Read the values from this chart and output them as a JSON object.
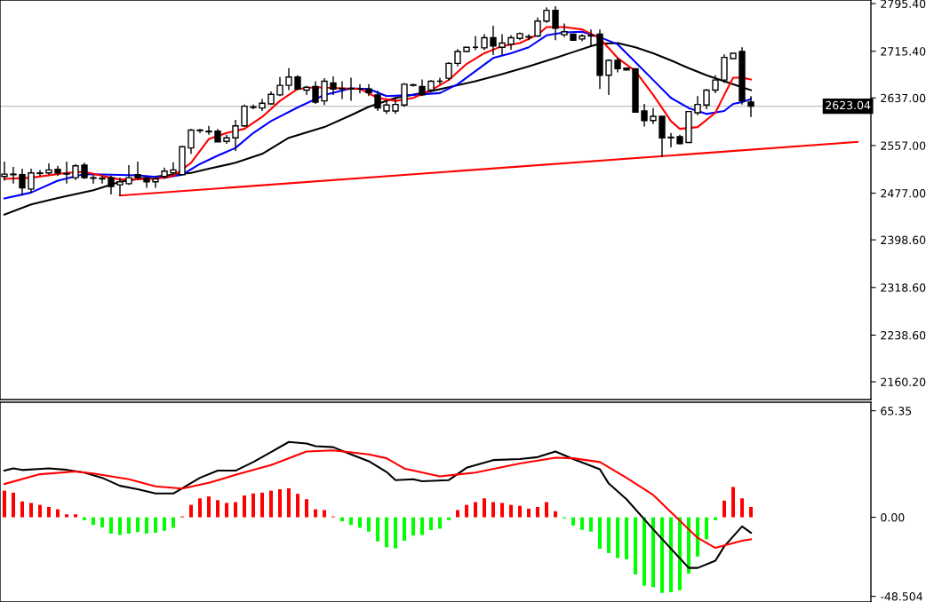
{
  "chart_data": [
    {
      "type": "candlestick",
      "categories": [
        null,
        null,
        null,
        null,
        null,
        null,
        null,
        null,
        null,
        null,
        null,
        null,
        null,
        null,
        null,
        null,
        null,
        null,
        null,
        null,
        null,
        null,
        null,
        null,
        null,
        null,
        null,
        null,
        null,
        null,
        null,
        null,
        null,
        null,
        null,
        null,
        null,
        null,
        null,
        null,
        null,
        null,
        null,
        null,
        null,
        null,
        null,
        null,
        null,
        null,
        null,
        null,
        null,
        null,
        null,
        null,
        null,
        null,
        null,
        null,
        null,
        null,
        null,
        null,
        null,
        null,
        null,
        null,
        null,
        null,
        null,
        null,
        null,
        null,
        null,
        null,
        null,
        null,
        null,
        null,
        null,
        null,
        null,
        null,
        null,
        null,
        null,
        null,
        null,
        null,
        null,
        null,
        null,
        null,
        null,
        null,
        null,
        null
      ],
      "ohlc": [
        [
          2505,
          2530,
          2498,
          2509
        ],
        [
          2508,
          2521,
          2493,
          2509
        ],
        [
          2508,
          2518,
          2473,
          2486
        ],
        [
          2484,
          2518,
          2478,
          2511
        ],
        [
          2511,
          2516,
          2506,
          2510
        ],
        [
          2511,
          2527,
          2508,
          2516
        ],
        [
          2517,
          2523,
          2506,
          2511
        ],
        [
          2509,
          2530,
          2493,
          2510
        ],
        [
          2503,
          2526,
          2499,
          2523
        ],
        [
          2524,
          2528,
          2501,
          2503
        ],
        [
          2503,
          2508,
          2493,
          2502
        ],
        [
          2502,
          2506,
          2493,
          2501
        ],
        [
          2503,
          2506,
          2475,
          2488
        ],
        [
          2491,
          2503,
          2473,
          2496
        ],
        [
          2493,
          2524,
          2491,
          2503
        ],
        [
          2508,
          2530,
          2500,
          2503
        ],
        [
          2501,
          2503,
          2486,
          2496
        ],
        [
          2496,
          2503,
          2486,
          2501
        ],
        [
          2505,
          2520,
          2501,
          2514
        ],
        [
          2511,
          2529,
          2508,
          2516
        ],
        [
          2508,
          2556,
          2508,
          2555
        ],
        [
          2553,
          2585,
          2543,
          2583
        ],
        [
          2582,
          2585,
          2578,
          2583
        ],
        [
          2581,
          2590,
          2575,
          2580
        ],
        [
          2581,
          2585,
          2563,
          2563
        ],
        [
          2564,
          2575,
          2560,
          2570
        ],
        [
          2570,
          2600,
          2548,
          2590
        ],
        [
          2590,
          2626,
          2588,
          2623
        ],
        [
          2621,
          2626,
          2618,
          2622
        ],
        [
          2620,
          2635,
          2615,
          2628
        ],
        [
          2627,
          2648,
          2626,
          2643
        ],
        [
          2642,
          2672,
          2640,
          2658
        ],
        [
          2658,
          2687,
          2650,
          2672
        ],
        [
          2672,
          2675,
          2650,
          2652
        ],
        [
          2650,
          2657,
          2642,
          2655
        ],
        [
          2656,
          2665,
          2627,
          2630
        ],
        [
          2632,
          2670,
          2625,
          2665
        ],
        [
          2662,
          2673,
          2642,
          2652
        ],
        [
          2652,
          2665,
          2635,
          2653
        ],
        [
          2653,
          2671,
          2632,
          2652
        ],
        [
          2652,
          2660,
          2645,
          2652
        ],
        [
          2652,
          2660,
          2640,
          2646
        ],
        [
          2642,
          2649,
          2615,
          2620
        ],
        [
          2615,
          2632,
          2610,
          2625
        ],
        [
          2615,
          2637,
          2610,
          2626
        ],
        [
          2625,
          2662,
          2622,
          2660
        ],
        [
          2658,
          2661,
          2656,
          2659
        ],
        [
          2656,
          2668,
          2640,
          2642
        ],
        [
          2650,
          2667,
          2647,
          2665
        ],
        [
          2665,
          2671,
          2660,
          2665
        ],
        [
          2670,
          2697,
          2667,
          2695
        ],
        [
          2695,
          2719,
          2690,
          2715
        ],
        [
          2715,
          2722,
          2714,
          2722
        ],
        [
          2722,
          2741,
          2717,
          2722
        ],
        [
          2721,
          2744,
          2717,
          2738
        ],
        [
          2738,
          2758,
          2709,
          2724
        ],
        [
          2722,
          2744,
          2709,
          2729
        ],
        [
          2727,
          2742,
          2718,
          2738
        ],
        [
          2737,
          2747,
          2734,
          2745
        ],
        [
          2739,
          2744,
          2734,
          2740
        ],
        [
          2741,
          2772,
          2739,
          2766
        ],
        [
          2766,
          2789,
          2763,
          2784
        ],
        [
          2784,
          2791,
          2734,
          2754
        ],
        [
          2743,
          2762,
          2739,
          2748
        ],
        [
          2744,
          2745,
          2734,
          2734
        ],
        [
          2736,
          2744,
          2732,
          2741
        ],
        [
          2742,
          2752,
          2724,
          2741
        ],
        [
          2744,
          2752,
          2652,
          2675
        ],
        [
          2675,
          2702,
          2642,
          2700
        ],
        [
          2700,
          2705,
          2680,
          2686
        ],
        [
          2687,
          2687,
          2684,
          2684
        ],
        [
          2686,
          2686,
          2613,
          2613
        ],
        [
          2615,
          2627,
          2589,
          2599
        ],
        [
          2599,
          2620,
          2593,
          2606
        ],
        [
          2606,
          2606,
          2538,
          2570
        ],
        [
          2570,
          2578,
          2554,
          2571
        ],
        [
          2572,
          2575,
          2559,
          2560
        ],
        [
          2562,
          2614,
          2562,
          2614
        ],
        [
          2612,
          2640,
          2608,
          2626
        ],
        [
          2625,
          2652,
          2618,
          2650
        ],
        [
          2650,
          2675,
          2645,
          2667
        ],
        [
          2667,
          2710,
          2662,
          2705
        ],
        [
          2703,
          2712,
          2703,
          2712
        ],
        [
          2715,
          2722,
          2626,
          2632
        ],
        [
          2630,
          2640,
          2605,
          2623
        ],
        null,
        null,
        null,
        null,
        null,
        null,
        null,
        null,
        null,
        null,
        null,
        null,
        null
      ],
      "series": [
        {
          "type": "line",
          "color": "#000000",
          "values": [
            2441,
            null,
            null,
            2458,
            null,
            null,
            2469,
            null,
            null,
            null,
            2482,
            null,
            null,
            2496,
            null,
            null,
            2503,
            null,
            null,
            2508,
            null,
            2511,
            null,
            2518,
            null,
            null,
            2528,
            null,
            null,
            2543,
            null,
            null,
            2570,
            null,
            null,
            null,
            2588,
            null,
            null,
            2608,
            null,
            2622,
            null,
            null,
            2637,
            null,
            null,
            2645,
            null,
            null,
            2655,
            null,
            null,
            2665,
            null,
            null,
            2677,
            null,
            null,
            2690,
            null,
            null,
            2704,
            null,
            2714,
            null,
            2724,
            2728,
            null,
            2729,
            null,
            2722,
            null,
            2712,
            null,
            2700,
            null,
            2687,
            null,
            2675,
            null,
            2665,
            null,
            2655,
            2650,
            null,
            null,
            null,
            null,
            null,
            null,
            null,
            null,
            null,
            null,
            null,
            null,
            null
          ]
        },
        {
          "type": "line",
          "color": "#0000ff",
          "values": [
            2468,
            null,
            null,
            2478,
            null,
            null,
            2498,
            null,
            null,
            2509,
            null,
            null,
            2508,
            null,
            null,
            2507,
            null,
            null,
            2503,
            null,
            2508,
            null,
            2526,
            null,
            2540,
            null,
            2553,
            null,
            2578,
            null,
            2598,
            null,
            null,
            2621,
            null,
            null,
            2642,
            null,
            null,
            2653,
            null,
            2652,
            null,
            2640,
            null,
            null,
            2642,
            null,
            null,
            2645,
            null,
            2660,
            null,
            2682,
            null,
            2704,
            null,
            2712,
            null,
            2722,
            null,
            2742,
            null,
            2747,
            null,
            2748,
            null,
            2739,
            null,
            2727,
            null,
            2697,
            null,
            2667,
            null,
            2637,
            null,
            2620,
            null,
            2610,
            null,
            2615,
            2627,
            2630,
            2635,
            null,
            null,
            null,
            null,
            null,
            null,
            null,
            null,
            null,
            null,
            null,
            null,
            null
          ]
        },
        {
          "type": "line",
          "color": "#ff0000",
          "values": [
            2501,
            null,
            null,
            2503,
            null,
            null,
            null,
            2511,
            null,
            2513,
            null,
            2506,
            null,
            2500,
            null,
            null,
            null,
            2501,
            null,
            2506,
            null,
            2528,
            null,
            2568,
            null,
            2578,
            null,
            2585,
            null,
            2605,
            null,
            2632,
            null,
            2652,
            null,
            2655,
            null,
            null,
            2653,
            null,
            2652,
            null,
            2637,
            null,
            2632,
            null,
            2637,
            null,
            2650,
            null,
            2667,
            null,
            2694,
            null,
            2712,
            null,
            2724,
            null,
            2729,
            null,
            2743,
            2756,
            null,
            2756,
            null,
            2752,
            null,
            2737,
            null,
            2704,
            null,
            2682,
            null,
            2642,
            null,
            2598,
            2585,
            null,
            2588,
            null,
            2612,
            2642,
            2671,
            2671,
            2668,
            null,
            null,
            null,
            null,
            null,
            null,
            null,
            null,
            null,
            null,
            null,
            null,
            null
          ]
        },
        {
          "type": "line",
          "color": "#ff0000",
          "values": [
            null,
            null,
            null,
            null,
            null,
            null,
            null,
            null,
            null,
            null,
            null,
            null,
            null,
            2473,
            null,
            null,
            null,
            null,
            null,
            null,
            null,
            null,
            null,
            null,
            null,
            null,
            null,
            null,
            null,
            null,
            null,
            null,
            null,
            null,
            null,
            null,
            null,
            null,
            null,
            null,
            null,
            null,
            null,
            null,
            null,
            null,
            null,
            null,
            null,
            null,
            null,
            null,
            null,
            null,
            null,
            null,
            null,
            null,
            null,
            null,
            null,
            null,
            null,
            null,
            null,
            null,
            null,
            null,
            null,
            null,
            null,
            null,
            null,
            null,
            null,
            null,
            null,
            null,
            null,
            null,
            null,
            null,
            null,
            null,
            null,
            null,
            null,
            null,
            null,
            null,
            null,
            null,
            null,
            null,
            null,
            null,
            2563,
            null
          ]
        }
      ],
      "ref_lines": [
        {
          "axis": "y",
          "value": 2623.04,
          "label": "2623.04",
          "color": "#c0c0c0"
        }
      ],
      "ylim": [
        2130.4,
        2801.4
      ],
      "yticks": [
        {
          "value": 2795.4,
          "label": "2795.40"
        },
        {
          "value": 2715.4,
          "label": "2715.40"
        },
        {
          "value": 2637,
          "label": "2637.00"
        },
        {
          "value": 2557,
          "label": "2557.00"
        },
        {
          "value": 2477,
          "label": "2477.00"
        },
        {
          "value": 2398.6,
          "label": "2398.60"
        },
        {
          "value": 2318.6,
          "label": "2318.60"
        },
        {
          "value": 2238.6,
          "label": "2238.60"
        },
        {
          "value": 2160.2,
          "label": "2160.20"
        }
      ],
      "tick_labels": "y",
      "grid": false
    },
    {
      "type": "bar",
      "categories": [
        null,
        null,
        null,
        null,
        null,
        null,
        null,
        null,
        null,
        null,
        null,
        null,
        null,
        null,
        null,
        null,
        null,
        null,
        null,
        null,
        null,
        null,
        null,
        null,
        null,
        null,
        null,
        null,
        null,
        null,
        null,
        null,
        null,
        null,
        null,
        null,
        null,
        null,
        null,
        null,
        null,
        null,
        null,
        null,
        null,
        null,
        null,
        null,
        null,
        null,
        null,
        null,
        null,
        null,
        null,
        null,
        null,
        null,
        null,
        null,
        null,
        null,
        null,
        null,
        null,
        null,
        null,
        null,
        null,
        null,
        null,
        null,
        null,
        null,
        null,
        null,
        null,
        null,
        null,
        null,
        null,
        null,
        null,
        null,
        null,
        null,
        null,
        null,
        null,
        null,
        null,
        null,
        null,
        null,
        null,
        null,
        null,
        null
      ],
      "values": [
        16.3,
        15.1,
        9.7,
        8.8,
        7.6,
        6.3,
        4.9,
        1.8,
        1.8,
        -1.8,
        -4.7,
        -6.1,
        -10,
        -10.9,
        -10,
        -9.1,
        -10,
        -9.5,
        -8.3,
        -6.5,
        0.5,
        7.6,
        11.6,
        12.8,
        10.5,
        8.8,
        9.3,
        13.4,
        14.6,
        15.1,
        16.3,
        17.2,
        17.8,
        14.4,
        11.1,
        4.9,
        4.4,
        0.5,
        -2.5,
        -4.7,
        -6.5,
        -8.8,
        -14.8,
        -18.4,
        -19.1,
        -14.4,
        -11.2,
        -10.9,
        -7.9,
        -7,
        -1.8,
        4.4,
        7.6,
        9.3,
        11.6,
        9.3,
        8.8,
        7.6,
        7,
        5.3,
        6.3,
        9.3,
        3.7,
        -0.7,
        -5.1,
        -7.7,
        -8.8,
        -19.3,
        -22,
        -25,
        -25.8,
        -35.1,
        -42,
        -42.9,
        -46.4,
        -46,
        -44.8,
        -34.6,
        -24.1,
        -13.5,
        -1.8,
        10.2,
        18.6,
        11.6,
        6.3,
        null,
        null,
        null,
        null,
        null,
        null,
        null,
        null,
        null,
        null,
        null,
        null,
        null
      ],
      "colors": [
        "#ff0000",
        "#ff0000",
        "#ff0000",
        "#ff0000",
        "#ff0000",
        "#ff0000",
        "#ff0000",
        "#ff0000",
        "#ff0000",
        "#00ff00",
        "#00ff00",
        "#00ff00",
        "#00ff00",
        "#00ff00",
        "#00ff00",
        "#00ff00",
        "#00ff00",
        "#00ff00",
        "#00ff00",
        "#00ff00",
        "#ff0000",
        "#ff0000",
        "#ff0000",
        "#ff0000",
        "#ff0000",
        "#ff0000",
        "#ff0000",
        "#ff0000",
        "#ff0000",
        "#ff0000",
        "#ff0000",
        "#ff0000",
        "#ff0000",
        "#ff0000",
        "#ff0000",
        "#ff0000",
        "#ff0000",
        "#ff0000",
        "#00ff00",
        "#00ff00",
        "#00ff00",
        "#00ff00",
        "#00ff00",
        "#00ff00",
        "#00ff00",
        "#00ff00",
        "#00ff00",
        "#00ff00",
        "#00ff00",
        "#00ff00",
        "#00ff00",
        "#ff0000",
        "#ff0000",
        "#ff0000",
        "#ff0000",
        "#ff0000",
        "#ff0000",
        "#ff0000",
        "#ff0000",
        "#ff0000",
        "#ff0000",
        "#ff0000",
        "#ff0000",
        "#00ff00",
        "#00ff00",
        "#00ff00",
        "#00ff00",
        "#00ff00",
        "#00ff00",
        "#00ff00",
        "#00ff00",
        "#00ff00",
        "#00ff00",
        "#00ff00",
        "#00ff00",
        "#00ff00",
        "#00ff00",
        "#00ff00",
        "#00ff00",
        "#00ff00",
        "#00ff00",
        "#ff0000",
        "#ff0000",
        "#ff0000",
        "#ff0000",
        null,
        null,
        null,
        null,
        null,
        null,
        null,
        null,
        null,
        null,
        null,
        null,
        null
      ],
      "series": [
        {
          "type": "line",
          "color": "#000000",
          "values": [
            28.6,
            30,
            29,
            null,
            null,
            30,
            null,
            29.1,
            null,
            27.4,
            null,
            24.2,
            null,
            19.3,
            null,
            17.2,
            null,
            14.6,
            null,
            14.6,
            null,
            null,
            24.2,
            null,
            28.6,
            null,
            28.6,
            null,
            33.9,
            null,
            40,
            null,
            46.2,
            null,
            45.3,
            43.6,
            null,
            43,
            null,
            38.6,
            null,
            34.4,
            null,
            27.8,
            22.8,
            null,
            23.3,
            22.1,
            null,
            null,
            22.8,
            null,
            30.4,
            null,
            null,
            35.1,
            null,
            null,
            35.7,
            null,
            36.9,
            null,
            40.4,
            null,
            35.7,
            null,
            null,
            29.5,
            20.7,
            null,
            11.1,
            null,
            null,
            -7.4,
            null,
            null,
            null,
            -31.1,
            -31.1,
            null,
            -26.7,
            -17.9,
            null,
            -5.6,
            -9.5,
            null,
            null,
            null,
            null,
            null,
            null,
            null,
            null,
            null,
            null,
            null,
            null,
            null
          ]
        },
        {
          "type": "line",
          "color": "#ff0000",
          "values": [
            20.4,
            null,
            null,
            null,
            26.4,
            null,
            null,
            null,
            28.1,
            null,
            26.9,
            null,
            null,
            null,
            23.3,
            null,
            null,
            19,
            null,
            null,
            17.6,
            null,
            null,
            21.1,
            null,
            null,
            26,
            null,
            null,
            null,
            32.1,
            null,
            null,
            null,
            40.4,
            null,
            null,
            41,
            null,
            null,
            null,
            38.6,
            null,
            36.2,
            null,
            29.9,
            null,
            null,
            null,
            25.1,
            null,
            null,
            null,
            27.4,
            null,
            null,
            null,
            null,
            33,
            null,
            null,
            null,
            36.5,
            null,
            36.2,
            null,
            null,
            33.9,
            null,
            null,
            24.2,
            null,
            null,
            13.7,
            null,
            null,
            -2.1,
            null,
            -12.6,
            null,
            -18.8,
            null,
            null,
            -14.4,
            -13.5,
            null,
            null,
            null,
            null,
            null,
            null,
            null,
            null,
            null,
            null,
            null,
            null,
            null
          ]
        }
      ],
      "ylim": [
        -52,
        70.6
      ],
      "yticks": [
        {
          "value": 65.35,
          "label": "65.35"
        },
        {
          "value": 0,
          "label": "0.00"
        },
        {
          "value": -48.504,
          "label": "-48.504"
        }
      ],
      "tick_labels": "y",
      "grid": false
    }
  ]
}
